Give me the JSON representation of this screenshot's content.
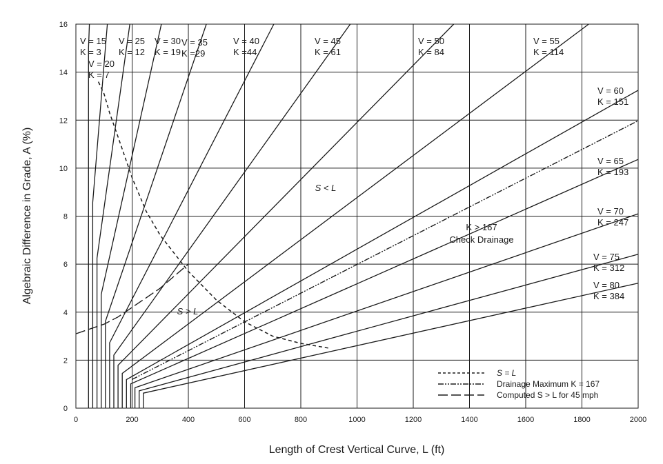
{
  "chart_data": {
    "type": "line",
    "title": "",
    "xlabel": "Length of Crest Vertical Curve, L (ft)",
    "ylabel": "Algebraic Difference in Grade, A (%)",
    "xlim": [
      0,
      2000
    ],
    "ylim": [
      0,
      16
    ],
    "x_ticks": [
      "0",
      "200",
      "400",
      "600",
      "800",
      "1000",
      "1200",
      "1400",
      "1600",
      "1800",
      "2000"
    ],
    "y_ticks": [
      "0",
      "2",
      "4",
      "6",
      "8",
      "10",
      "12",
      "14",
      "16"
    ],
    "grid": true,
    "series": [
      {
        "name": "V = 15, K = 3",
        "speed": "V = 15",
        "k_text": "K = 3",
        "v": 15,
        "K": 3,
        "min_length": 45
      },
      {
        "name": "V = 20, K = 7",
        "speed": "V = 20",
        "k_text": "K = 7",
        "v": 20,
        "K": 7,
        "min_length": 60
      },
      {
        "name": "V = 25, K = 12",
        "speed": "V = 25",
        "k_text": "K = 12",
        "v": 25,
        "K": 12,
        "min_length": 75
      },
      {
        "name": "V = 30, K = 19",
        "speed": "V = 30",
        "k_text": "K = 19",
        "v": 30,
        "K": 19,
        "min_length": 90
      },
      {
        "name": "V = 35, K =29",
        "speed": "V = 35",
        "k_text": "K =29",
        "v": 35,
        "K": 29,
        "min_length": 105
      },
      {
        "name": "V = 40, K =44",
        "speed": "V = 40",
        "k_text": "K =44",
        "v": 40,
        "K": 44,
        "min_length": 120
      },
      {
        "name": "V = 45, K = 61",
        "speed": "V = 45",
        "k_text": "K = 61",
        "v": 45,
        "K": 61,
        "min_length": 135
      },
      {
        "name": "V = 50, K = 84",
        "speed": "V = 50",
        "k_text": "K = 84",
        "v": 50,
        "K": 84,
        "min_length": 150
      },
      {
        "name": "V = 55, K = 114",
        "speed": "V = 55",
        "k_text": "K = 114",
        "v": 55,
        "K": 114,
        "min_length": 165
      },
      {
        "name": "V = 60, K = 151",
        "speed": "V = 60",
        "k_text": "K = 151",
        "v": 60,
        "K": 151,
        "min_length": 180
      },
      {
        "name": "V = 65, K = 193",
        "speed": "V = 65",
        "k_text": "K = 193",
        "v": 65,
        "K": 193,
        "min_length": 195
      },
      {
        "name": "V = 70, K = 247",
        "speed": "V = 70",
        "k_text": "K = 247",
        "v": 70,
        "K": 247,
        "min_length": 210
      },
      {
        "name": "V = 75, K = 312",
        "speed": "V = 75",
        "k_text": "K = 312",
        "v": 75,
        "K": 312,
        "min_length": 225
      },
      {
        "name": "V = 80, K = 384",
        "speed": "V = 80",
        "k_text": "K = 384",
        "v": 80,
        "K": 384,
        "min_length": 240
      }
    ],
    "drainage_max": {
      "name": "Drainage Maximum K = 167",
      "K": 167
    },
    "s_equals_l": {
      "name": "S = L",
      "x": [
        80,
        100,
        120,
        150,
        200,
        250,
        300,
        400,
        500,
        600,
        700,
        800,
        900
      ],
      "y": [
        13.6,
        13.1,
        12.3,
        11.3,
        9.6,
        8.2,
        7.2,
        5.7,
        4.5,
        3.6,
        3.0,
        2.7,
        2.5
      ]
    },
    "computed_45": {
      "name": "Computed S > L for 45 mph",
      "x": [
        0,
        50,
        100,
        150,
        200,
        250,
        300,
        350,
        400
      ],
      "y": [
        3.1,
        3.3,
        3.5,
        3.8,
        4.2,
        4.6,
        5.0,
        5.5,
        6.0
      ]
    },
    "annotations": {
      "s_less_l": "S < L",
      "s_greater_l": "S > L",
      "k_gt_167": "K > 167",
      "check_drainage": "Check Drainage"
    },
    "legend": {
      "position": "bottom-right",
      "entries": [
        "S = L",
        "Drainage Maximum K = 167",
        "Computed S > L for 45 mph"
      ]
    }
  }
}
